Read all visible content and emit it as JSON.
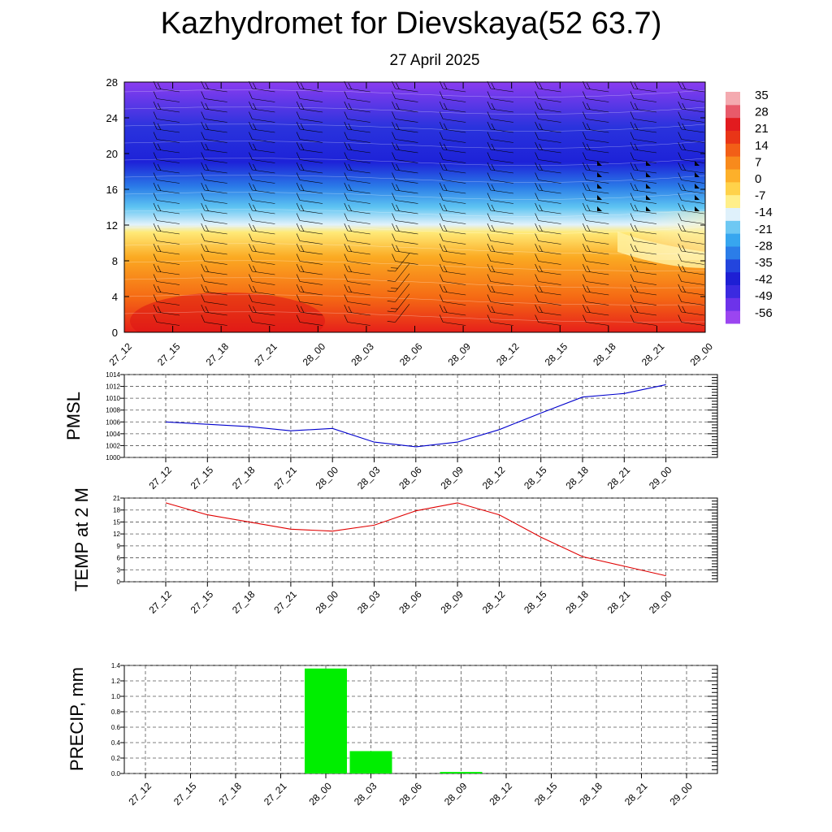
{
  "page": {
    "title": "Kazhydromet for Dievskaya(52 63.7)",
    "subtitle": "27 April 2025"
  },
  "chart_data": [
    {
      "type": "heatmap",
      "title": "",
      "xlabel": "",
      "ylabel": "",
      "x_ticks": [
        "27_12",
        "27_15",
        "27_18",
        "27_21",
        "28_00",
        "28_03",
        "28_06",
        "28_09",
        "28_12",
        "28_15",
        "28_18",
        "28_21",
        "29_00"
      ],
      "y_ticks": [
        0,
        4,
        8,
        12,
        16,
        20,
        24,
        28
      ],
      "ylim": [
        0,
        28
      ],
      "colorbar_ticks": [
        35,
        28,
        21,
        14,
        7,
        0,
        -7,
        -14,
        -21,
        -28,
        -35,
        -42,
        -49,
        -56
      ],
      "colorbar_range": [
        -60,
        38
      ],
      "colors": {
        "warm": "#e8201c",
        "mid": "#ffd24a",
        "cold": "#1f1fd0",
        "light_blue": "#2aa9f0"
      }
    },
    {
      "type": "line",
      "title": "",
      "xlabel": "",
      "ylabel": "PMSL",
      "categories": [
        "27_12",
        "27_15",
        "27_18",
        "27_21",
        "28_00",
        "28_03",
        "28_06",
        "28_09",
        "28_12",
        "28_15",
        "28_18",
        "28_21",
        "29_00"
      ],
      "series": [
        {
          "name": "",
          "values": [
            1006.0,
            1005.6,
            1005.2,
            1004.5,
            1004.9,
            1002.6,
            1001.8,
            1002.6,
            1004.7,
            1007.5,
            1010.2,
            1010.8,
            1012.3
          ],
          "color": "#0000cc"
        }
      ],
      "ylim": [
        1000,
        1014
      ],
      "y_ticks": [
        1000,
        1002,
        1004,
        1006,
        1008,
        1010,
        1012,
        1014
      ],
      "grid": true
    },
    {
      "type": "line",
      "title": "",
      "xlabel": "",
      "ylabel": "TEMP at 2 M",
      "categories": [
        "27_12",
        "27_15",
        "27_18",
        "27_21",
        "28_00",
        "28_03",
        "28_06",
        "28_09",
        "28_12",
        "28_15",
        "28_18",
        "28_21",
        "29_00"
      ],
      "series": [
        {
          "name": "",
          "values": [
            19.8,
            16.8,
            15.0,
            13.2,
            12.7,
            14.2,
            17.8,
            19.8,
            16.8,
            11.2,
            6.3,
            3.9,
            1.5
          ],
          "color": "#e00000"
        }
      ],
      "ylim": [
        0,
        21
      ],
      "y_ticks": [
        0,
        3,
        6,
        9,
        12,
        15,
        18,
        21
      ],
      "grid": true
    },
    {
      "type": "bar",
      "title": "",
      "xlabel": "",
      "ylabel": "PRECIP, mm",
      "categories": [
        "27_12",
        "27_15",
        "27_18",
        "27_21",
        "28_00",
        "28_03",
        "28_06",
        "28_09",
        "28_12",
        "28_15",
        "28_18",
        "28_21",
        "29_00"
      ],
      "values": [
        0,
        0,
        0,
        0,
        1.36,
        0.29,
        0,
        0.02,
        0,
        0,
        0,
        0,
        0
      ],
      "ylim": [
        0,
        1.4
      ],
      "y_ticks": [
        0.0,
        0.2,
        0.4,
        0.6,
        0.8,
        1.0,
        1.2,
        1.4
      ],
      "color": "#00ee00",
      "grid": true
    }
  ]
}
